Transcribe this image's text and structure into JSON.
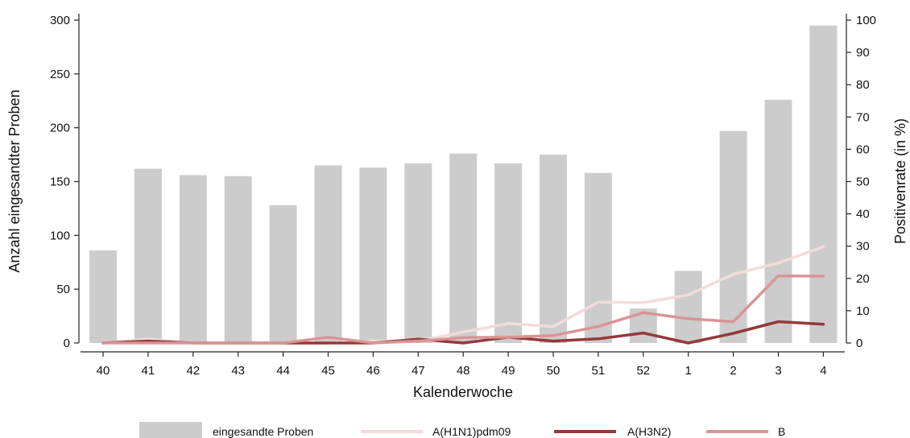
{
  "chart_data": {
    "type": "bar",
    "title": "",
    "xlabel": "Kalenderwoche",
    "ylabel_left": "Anzahl eingesandter Proben",
    "ylabel_right": "Positivenrate (in %)",
    "categories": [
      "40",
      "41",
      "42",
      "43",
      "44",
      "45",
      "46",
      "47",
      "48",
      "49",
      "50",
      "51",
      "52",
      "1",
      "2",
      "3",
      "4"
    ],
    "ylim_left": [
      0,
      300
    ],
    "yticks_left": [
      0,
      50,
      100,
      150,
      200,
      250,
      300
    ],
    "ylim_right": [
      0,
      100
    ],
    "yticks_right": [
      0,
      10,
      20,
      30,
      40,
      50,
      60,
      70,
      80,
      90,
      100
    ],
    "grid": false,
    "legend_position": "bottom",
    "bars": {
      "name": "eingesandte Proben",
      "axis": "left",
      "color": "#cccccc",
      "values": [
        86,
        162,
        156,
        155,
        128,
        165,
        163,
        167,
        176,
        167,
        175,
        158,
        32,
        67,
        197,
        226,
        295
      ]
    },
    "series": [
      {
        "name": "A(H1N1)pdm09",
        "axis": "right",
        "color": "#f2dcda",
        "values": [
          0,
          1.2,
          0,
          0,
          0,
          0,
          0.6,
          0.6,
          3.4,
          6.0,
          5.1,
          12.7,
          12.5,
          14.9,
          21.3,
          24.8,
          29.8
        ]
      },
      {
        "name": "A(H3N2)",
        "axis": "right",
        "color": "#94393b",
        "values": [
          0,
          0.6,
          0,
          0,
          0,
          0,
          0,
          1.2,
          0,
          1.8,
          0.6,
          1.3,
          3.1,
          0,
          3.0,
          6.6,
          5.8
        ]
      },
      {
        "name": "B",
        "axis": "right",
        "color": "#d99595",
        "values": [
          0,
          0,
          0,
          0,
          0,
          1.8,
          0,
          0.6,
          1.7,
          1.8,
          2.3,
          5.1,
          9.4,
          7.5,
          6.6,
          20.8,
          20.7
        ]
      }
    ]
  }
}
